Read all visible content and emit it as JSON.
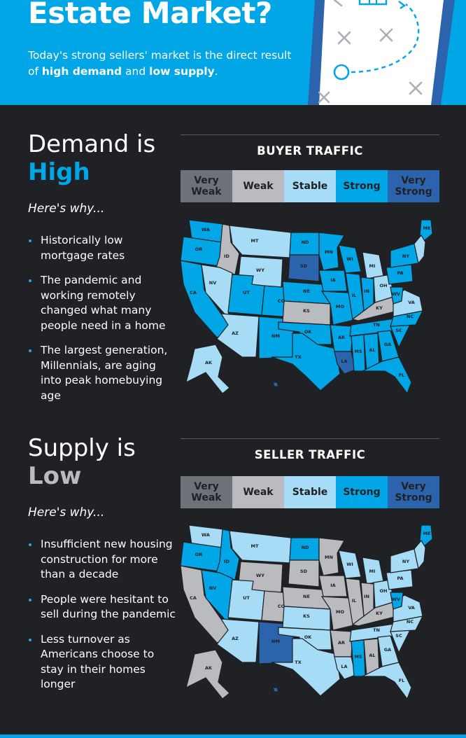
{
  "header": {
    "title": "Estate Market?",
    "subtitle_pre": "Today's strong sellers' market is the direct result of ",
    "subtitle_b1": "high demand",
    "subtitle_mid": " and ",
    "subtitle_b2": "low supply",
    "subtitle_end": "."
  },
  "colors": {
    "very_weak": "#6d7278",
    "weak": "#b9bbbe",
    "stable": "#a6dcf5",
    "strong": "#00a6e6",
    "very_strong": "#2b63ad",
    "accent": "#00a6e6"
  },
  "demand": {
    "heading": "Demand is",
    "heading_emph": "High",
    "why": "Here's why...",
    "reasons": [
      "Historically low mortgage rates",
      "The pandemic and working remotely changed what many people need in a home",
      "The largest generation, Millennials, are aging into peak homebuying age"
    ],
    "chart_title": "BUYER TRAFFIC"
  },
  "supply": {
    "heading": "Supply is",
    "heading_emph": "Low",
    "why": "Here's why...",
    "reasons": [
      "Insufficient new housing construction for more than a decade",
      "People were hesitant to sell during the pandemic",
      "Less turnover as Americans choose to stay in their homes longer"
    ],
    "chart_title": "SELLER TRAFFIC"
  },
  "legend": [
    "Very Weak",
    "Weak",
    "Stable",
    "Strong",
    "Very Strong"
  ],
  "buyer_states": {
    "WA": "strong",
    "OR": "strong",
    "CA": "strong",
    "ID": "weak",
    "NV": "stable",
    "MT": "stable",
    "WY": "stable",
    "UT": "strong",
    "CO": "strong",
    "AZ": "stable",
    "NM": "strong",
    "ND": "strong",
    "SD": "very_strong",
    "NE": "strong",
    "KS": "weak",
    "OK": "strong",
    "TX": "strong",
    "MN": "strong",
    "IA": "strong",
    "MO": "strong",
    "AR": "strong",
    "LA": "very_strong",
    "WI": "strong",
    "IL": "strong",
    "MI": "stable",
    "IN": "strong",
    "OH": "stable",
    "KY": "weak",
    "TN": "strong",
    "MS": "strong",
    "AL": "strong",
    "GA": "strong",
    "FL": "strong",
    "SC": "strong",
    "NC": "strong",
    "VA": "stable",
    "WV": "strong",
    "PA": "strong",
    "NY": "strong",
    "ME": "strong",
    "AK": "stable",
    "HI": "very_strong"
  },
  "seller_states": {
    "WA": "stable",
    "OR": "strong",
    "CA": "weak",
    "ID": "strong",
    "NV": "strong",
    "MT": "stable",
    "WY": "weak",
    "UT": "stable",
    "CO": "weak",
    "AZ": "stable",
    "NM": "very_strong",
    "ND": "strong",
    "SD": "weak",
    "NE": "weak",
    "KS": "stable",
    "OK": "stable",
    "TX": "stable",
    "MN": "weak",
    "IA": "weak",
    "MO": "weak",
    "AR": "weak",
    "LA": "stable",
    "WI": "stable",
    "IL": "weak",
    "MI": "stable",
    "IN": "weak",
    "OH": "stable",
    "KY": "weak",
    "TN": "stable",
    "MS": "strong",
    "AL": "weak",
    "GA": "stable",
    "FL": "stable",
    "SC": "stable",
    "NC": "stable",
    "VA": "stable",
    "WV": "strong",
    "PA": "stable",
    "NY": "stable",
    "ME": "strong",
    "AK": "weak",
    "HI": "very_strong"
  }
}
